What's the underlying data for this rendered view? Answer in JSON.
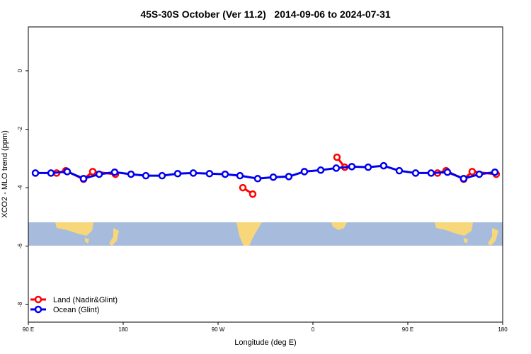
{
  "chart_data": {
    "type": "line",
    "title": "45S-30S October (Ver 11.2)   2014-09-06 to 2024-07-31",
    "x_label": "Longitude (deg E)",
    "y_label": "XCO2 - MLO trend (ppm)",
    "xlim": [
      90,
      540
    ],
    "xticks": [
      {
        "value": 90,
        "label": "90 E"
      },
      180,
      {
        "value": 270,
        "label": "90 W"
      },
      {
        "value": 360,
        "label": "0"
      },
      {
        "value": 450,
        "label": "90 E"
      },
      {
        "value": 540,
        "label": "180"
      }
    ],
    "ylim": [
      -8.6,
      1.5
    ],
    "yticks": [
      0,
      -2,
      -4,
      -6,
      -8
    ],
    "legend": "bottom-left",
    "series": [
      {
        "name": "Land (Nadir&Glint)",
        "color": "#ff0000",
        "x": [
          116.9,
          125.6,
          142.4,
          151.1,
          172.6,
          null,
          293.5,
          302.9,
          null,
          382.8,
          390.2,
          null,
          478.2,
          486.3,
          503.0,
          511.1,
          533.9
        ],
        "values": [
          -3.5,
          -3.42,
          -3.71,
          -3.45,
          -3.54,
          null,
          -4.0,
          -4.22,
          null,
          -2.96,
          -3.3,
          null,
          -3.5,
          -3.42,
          -3.71,
          -3.45,
          -3.54
        ]
      },
      {
        "name": "Ocean (Glint)",
        "color": "#0000ee",
        "x": [
          96.7,
          111.5,
          126.9,
          142.4,
          157.2,
          171.9,
          187.4,
          201.5,
          216.9,
          231.7,
          246.5,
          261.9,
          276.7,
          290.8,
          307.6,
          322.4,
          337.1,
          351.9,
          367.4,
          382.1,
          396.9,
          412.4,
          427.1,
          441.9,
          457.4,
          472.1,
          487.6,
          503.0,
          517.8,
          532.6
        ],
        "values": [
          -3.5,
          -3.5,
          -3.45,
          -3.69,
          -3.54,
          -3.47,
          -3.54,
          -3.59,
          -3.59,
          -3.52,
          -3.5,
          -3.52,
          -3.54,
          -3.59,
          -3.69,
          -3.64,
          -3.62,
          -3.45,
          -3.4,
          -3.33,
          -3.28,
          -3.3,
          -3.25,
          -3.42,
          -3.5,
          -3.5,
          -3.47,
          -3.69,
          -3.54,
          -3.47
        ]
      }
    ]
  }
}
